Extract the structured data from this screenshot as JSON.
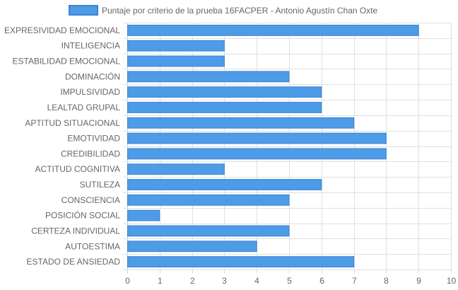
{
  "chart_data": {
    "type": "bar",
    "orientation": "horizontal",
    "categories": [
      "EXPRESIVIDAD EMOCIONAL",
      "INTELIGENCIA",
      "ESTABILIDAD EMOCIONAL",
      "DOMINACIÓN",
      "IMPULSIVIDAD",
      "LEALTAD GRUPAL",
      "APTITUD SITUACIONAL",
      "EMOTIVIDAD",
      "CREDIBILIDAD",
      "ACTITUD COGNITIVA",
      "SUTILEZA",
      "CONSCIENCIA",
      "POSICIÓN SOCIAL",
      "CERTEZA INDIVIDUAL",
      "AUTOESTIMA",
      "ESTADO DE ANSIEDAD"
    ],
    "series": [
      {
        "name": "Puntaje por criterio de la prueba 16FACPER - Antonio Agustín Chan Oxte",
        "values": [
          9,
          3,
          3,
          5,
          6,
          6,
          7,
          8,
          8,
          3,
          6,
          5,
          1,
          5,
          4,
          7
        ]
      }
    ],
    "xlim": [
      0,
      10
    ],
    "x_ticks": [
      "0",
      "1",
      "2",
      "3",
      "4",
      "5",
      "6",
      "7",
      "8",
      "9",
      "10"
    ],
    "grid": true,
    "legend_position": "top",
    "colors": {
      "bar_fill": "#4e9be8",
      "bar_border": "#3b82d6",
      "grid": "#e0e0e0",
      "axis": "#cccccc",
      "text": "#666666"
    }
  }
}
